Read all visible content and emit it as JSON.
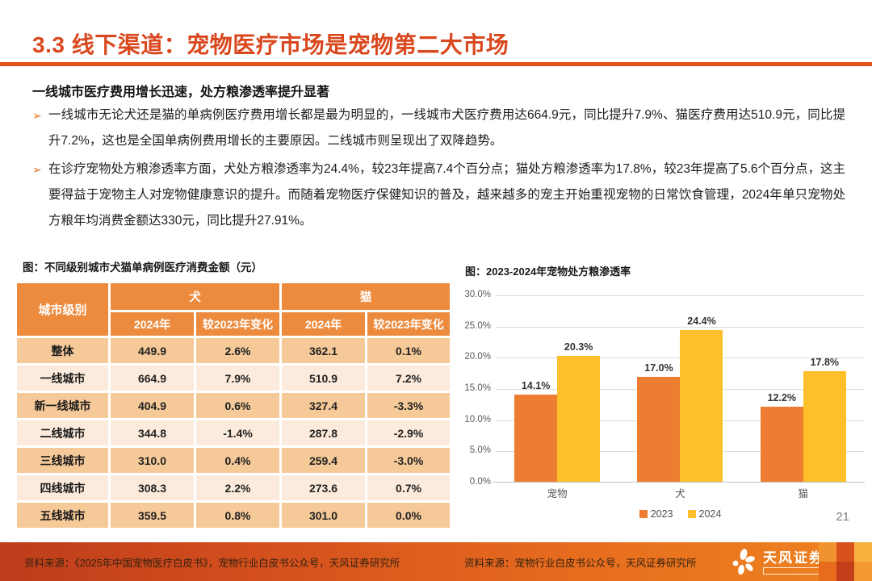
{
  "page": {
    "title": "3.3 线下渠道：宠物医疗市场是宠物第二大市场",
    "page_number": "21"
  },
  "content": {
    "subtitle": "一线城市医疗费用增长迅速，处方粮渗透率提升显著",
    "bullet_marker": "➢",
    "bullets": [
      "一线城市无论犬还是猫的单病例医疗费用增长都是最为明显的，一线城市犬医疗费用达664.9元，同比提升7.9%、猫医疗费用达510.9元，同比提升7.2%，这也是全国单病例费用增长的主要原因。二线城市则呈现出了双降趋势。",
      "在诊疗宠物处方粮渗透率方面，犬处方粮渗透率为24.4%，较23年提高7.4个百分点；猫处方粮渗透率为17.8%，较23年提高了5.6个百分点，这主要得益于宠物主人对宠物健康意识的提升。而随着宠物医疗保健知识的普及，越来越多的宠主开始重视宠物的日常饮食管理，2024年单只宠物处方粮年均消费金额达330元，同比提升27.91%。"
    ]
  },
  "table": {
    "caption": "图：不同级别城市犬猫单病例医疗消费金额（元）",
    "header": {
      "corner": "城市级别",
      "group_dog": "犬",
      "group_cat": "猫",
      "sub": [
        "2024年",
        "较2023年变化",
        "2024年",
        "较2023年变化"
      ]
    },
    "rows": [
      {
        "label": "整体",
        "values": [
          "449.9",
          "2.6%",
          "362.1",
          "0.1%"
        ]
      },
      {
        "label": "一线城市",
        "values": [
          "664.9",
          "7.9%",
          "510.9",
          "7.2%"
        ]
      },
      {
        "label": "新一线城市",
        "values": [
          "404.9",
          "0.6%",
          "327.4",
          "-3.3%"
        ]
      },
      {
        "label": "二线城市",
        "values": [
          "344.8",
          "-1.4%",
          "287.8",
          "-2.9%"
        ]
      },
      {
        "label": "三线城市",
        "values": [
          "310.0",
          "0.4%",
          "259.4",
          "-3.0%"
        ]
      },
      {
        "label": "四线城市",
        "values": [
          "308.3",
          "2.2%",
          "273.6",
          "0.7%"
        ]
      },
      {
        "label": "五线城市",
        "values": [
          "359.5",
          "0.8%",
          "301.0",
          "0.0%"
        ]
      }
    ]
  },
  "chart": {
    "caption": "图：2023-2024年宠物处方粮渗透率"
  },
  "chart_data": {
    "type": "bar",
    "title": "2023-2024年宠物处方粮渗透率",
    "categories": [
      "宠物",
      "犬",
      "猫"
    ],
    "series": [
      {
        "name": "2023",
        "color": "#ed7d31",
        "values": [
          14.1,
          17.0,
          12.2
        ]
      },
      {
        "name": "2024",
        "color": "#fec02a",
        "values": [
          20.3,
          24.4,
          17.8
        ]
      }
    ],
    "yticks": [
      "30.0%",
      "25.0%",
      "20.0%",
      "15.0%",
      "10.0%",
      "5.0%",
      "0.0%"
    ],
    "ylim": [
      0,
      30
    ],
    "grid": true,
    "legend_position": "bottom",
    "data_labels": true
  },
  "footer": {
    "source_left": "资料来源：《2025年中国宠物医疗白皮书》，宠物行业白皮书公众号，天风证券研究所",
    "source_right": "资料来源：宠物行业白皮书公众号，天风证券研究所",
    "brand": "天风证券",
    "mosaic_colors": [
      "#f0922e",
      "#d8531c",
      "#f7b13f",
      "#e86c1e",
      "#c33f19",
      "#f59a33"
    ]
  },
  "colors": {
    "title": "#d9481e",
    "title_rule": "#e2521d",
    "table_header_bg": "#ec8b3e",
    "table_row_dark": "#f6c998",
    "table_row_light": "#fcebdc",
    "series_2023": "#ed7d31",
    "series_2024": "#fec02a",
    "footer_gradient_left": "#bd3d1b",
    "footer_gradient_right": "#ef8420"
  }
}
